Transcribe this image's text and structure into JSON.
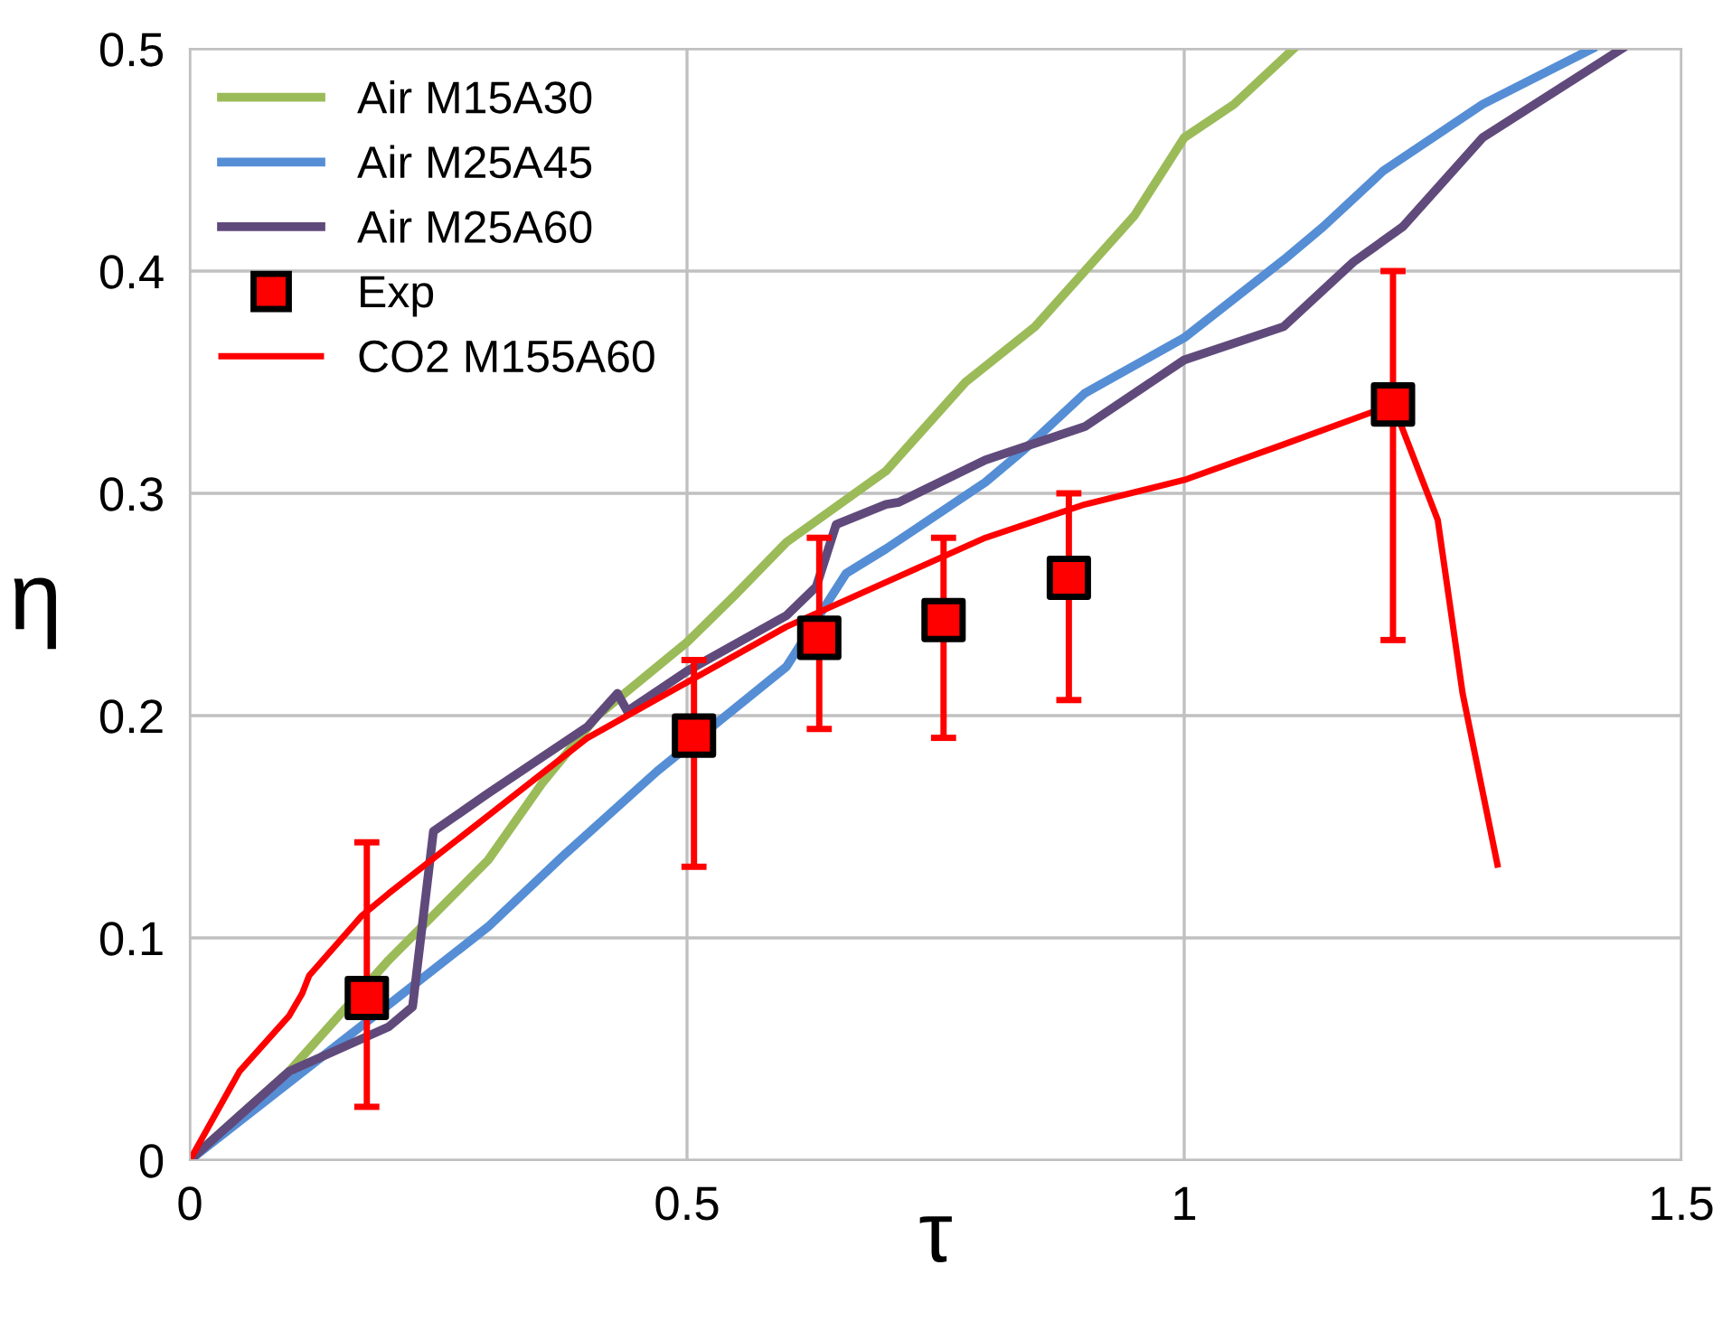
{
  "chart_data": {
    "type": "line",
    "xlabel": "τ",
    "ylabel": "η",
    "xlim": [
      0,
      1.5
    ],
    "xticks": [
      {
        "value": 0,
        "label": "0"
      },
      0.5,
      {
        "value": 1,
        "label": "1"
      },
      1.5
    ],
    "ylim": [
      0,
      0.5
    ],
    "yticks": [
      {
        "value": 0,
        "label": "0"
      },
      0.1,
      0.2,
      0.3,
      0.4,
      0.5
    ],
    "grid": true,
    "legend": "top left",
    "marker": "none",
    "line_style": "solid",
    "series": [
      {
        "name": "Air M15A30",
        "color": "#9bbb59",
        "x": [
          0,
          0.1,
          0.15,
          0.2,
          0.3,
          0.355,
          0.41,
          0.5,
          0.55,
          0.6,
          0.7,
          0.78,
          0.85,
          0.9,
          0.95,
          1.0,
          1.05,
          1.11
        ],
        "values": [
          0,
          0.04,
          0.065,
          0.09,
          0.135,
          0.17,
          0.2,
          0.233,
          0.255,
          0.278,
          0.31,
          0.35,
          0.375,
          0.4,
          0.425,
          0.46,
          0.475,
          0.5
        ]
      },
      {
        "name": "Air M25A45",
        "color": "#558ed5",
        "x": [
          0,
          0.1,
          0.2,
          0.3,
          0.378,
          0.47,
          0.6,
          0.66,
          0.7,
          0.8,
          0.84,
          0.9,
          1.0,
          1.1,
          1.14,
          1.2,
          1.3,
          1.41
        ],
        "values": [
          0,
          0.035,
          0.07,
          0.105,
          0.138,
          0.175,
          0.222,
          0.264,
          0.275,
          0.305,
          0.32,
          0.345,
          0.37,
          0.405,
          0.42,
          0.445,
          0.475,
          0.5
        ]
      },
      {
        "name": "Air M25A60",
        "color": "#604a7b",
        "x": [
          0,
          0.1,
          0.2,
          0.224,
          0.245,
          0.3,
          0.4,
          0.43,
          0.44,
          0.5,
          0.6,
          0.63,
          0.65,
          0.7,
          0.713,
          0.8,
          0.9,
          1.0,
          1.1,
          1.17,
          1.22,
          1.3,
          1.44
        ],
        "values": [
          0,
          0.04,
          0.06,
          0.069,
          0.148,
          0.165,
          0.195,
          0.21,
          0.202,
          0.22,
          0.245,
          0.258,
          0.286,
          0.295,
          0.296,
          0.315,
          0.33,
          0.36,
          0.375,
          0.404,
          0.42,
          0.46,
          0.5
        ]
      },
      {
        "name": "Exp",
        "type": "scatter",
        "marker": "square",
        "color": "#ff0000",
        "x": [
          0.178,
          0.507,
          0.633,
          0.758,
          0.884,
          1.21
        ],
        "values": [
          0.073,
          0.191,
          0.235,
          0.243,
          0.262,
          0.34
        ],
        "errors": [
          [
            0.024,
            0.143
          ],
          [
            0.132,
            0.225
          ],
          [
            0.194,
            0.28
          ],
          [
            0.19,
            0.28
          ],
          [
            0.207,
            0.3
          ],
          [
            0.234,
            0.4
          ]
        ]
      },
      {
        "name": "CO2 M155A60",
        "color": "#ff0000",
        "x": [
          0,
          0.05,
          0.1,
          0.113,
          0.12,
          0.173,
          0.2,
          0.3,
          0.4,
          0.5,
          0.6,
          0.7,
          0.8,
          0.9,
          1.0,
          1.1,
          1.21,
          1.255,
          1.28,
          1.315
        ],
        "values": [
          0,
          0.04,
          0.065,
          0.075,
          0.083,
          0.11,
          0.12,
          0.155,
          0.19,
          0.215,
          0.24,
          0.26,
          0.28,
          0.295,
          0.306,
          0.322,
          0.34,
          0.288,
          0.21,
          0.133
        ]
      }
    ]
  }
}
